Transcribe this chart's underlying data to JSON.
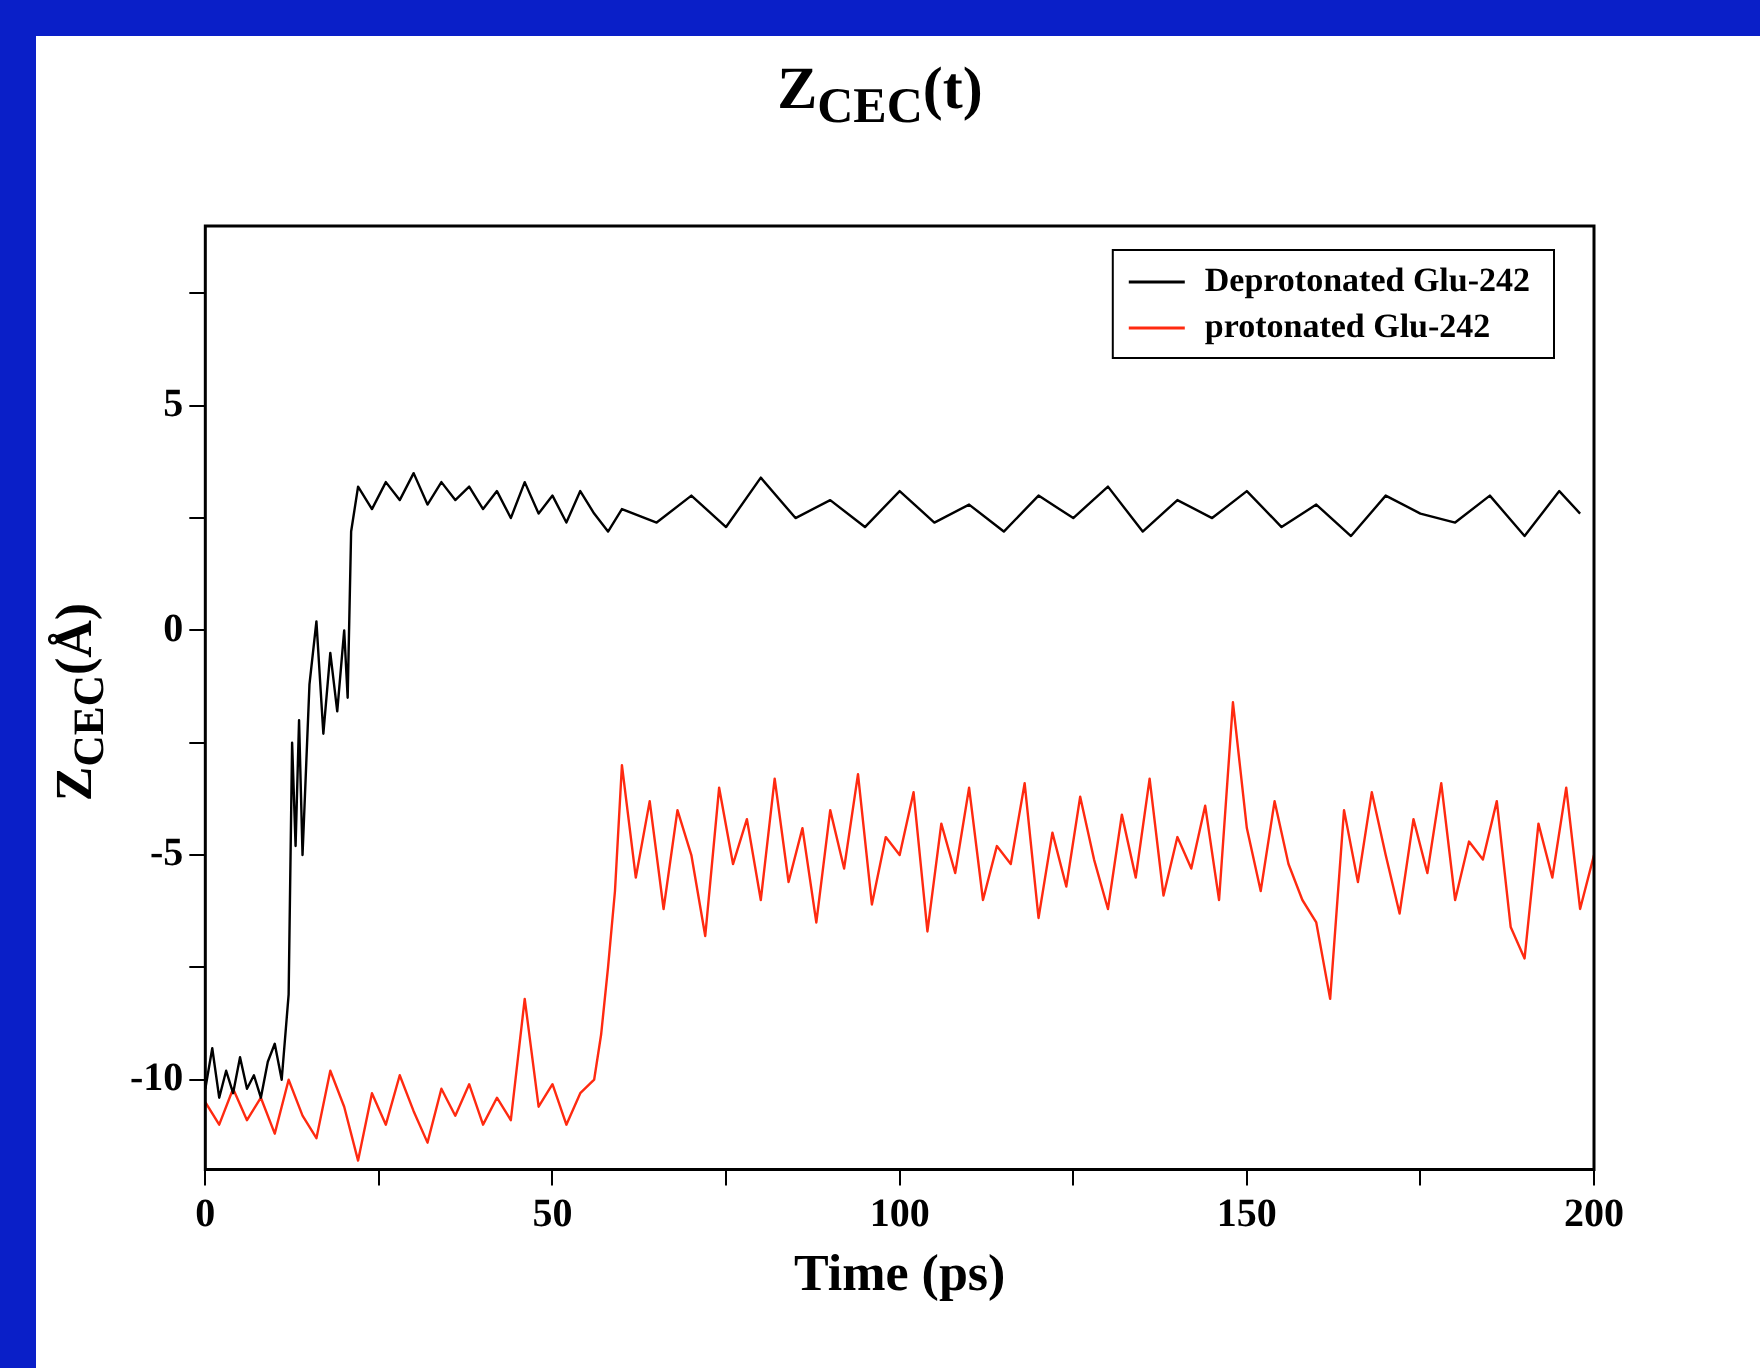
{
  "chart_data": {
    "type": "line",
    "title": "Z$_{CEC}$(t)",
    "xlabel": "Time (ps)",
    "ylabel": "Z$_{CEC}$(Å)",
    "legend": "top right",
    "marker": "none",
    "line_style": "solid",
    "xlim": [
      0,
      200
    ],
    "xticks": [
      0,
      {
        "value": 25,
        "label": null
      },
      50,
      {
        "value": 75,
        "label": null
      },
      100,
      {
        "value": 125,
        "label": null
      },
      150,
      {
        "value": 175,
        "label": null
      },
      200
    ],
    "ylim": [
      -12,
      9
    ],
    "yticks": [
      -10,
      {
        "value": -7.5,
        "label": null
      },
      -5,
      {
        "value": -2.5,
        "label": null
      },
      0,
      {
        "value": 2.5,
        "label": null
      },
      5,
      {
        "value": 7.5,
        "label": null
      }
    ],
    "series": [
      {
        "name": "Deprotonated Glu-242",
        "color": "#000000",
        "x": [
          0,
          1,
          2,
          3,
          4,
          5,
          6,
          7,
          8,
          9,
          10,
          11,
          12,
          12.5,
          13,
          13.5,
          14,
          15,
          16,
          17,
          18,
          19,
          20,
          20.5,
          21,
          22,
          24,
          26,
          28,
          30,
          32,
          34,
          36,
          38,
          40,
          42,
          44,
          46,
          48,
          50,
          52,
          54,
          56,
          58,
          60,
          65,
          70,
          75,
          80,
          85,
          90,
          95,
          100,
          105,
          110,
          115,
          120,
          125,
          130,
          135,
          140,
          145,
          150,
          155,
          160,
          165,
          170,
          175,
          180,
          185,
          190,
          195,
          198
        ],
        "values": [
          -10.2,
          -9.3,
          -10.4,
          -9.8,
          -10.3,
          -9.5,
          -10.2,
          -9.9,
          -10.4,
          -9.6,
          -9.2,
          -10.0,
          -8.1,
          -2.5,
          -4.8,
          -2.0,
          -5.0,
          -1.2,
          0.2,
          -2.3,
          -0.5,
          -1.8,
          0.0,
          -1.5,
          2.2,
          3.2,
          2.7,
          3.3,
          2.9,
          3.5,
          2.8,
          3.3,
          2.9,
          3.2,
          2.7,
          3.1,
          2.5,
          3.3,
          2.6,
          3.0,
          2.4,
          3.1,
          2.6,
          2.2,
          2.7,
          2.4,
          3.0,
          2.3,
          3.4,
          2.5,
          2.9,
          2.3,
          3.1,
          2.4,
          2.8,
          2.2,
          3.0,
          2.5,
          3.2,
          2.2,
          2.9,
          2.5,
          3.1,
          2.3,
          2.8,
          2.1,
          3.0,
          2.6,
          2.4,
          3.0,
          2.1,
          3.1,
          2.6
        ]
      },
      {
        "name": "protonated Glu-242",
        "color": "#ff2a10",
        "x": [
          0,
          2,
          4,
          6,
          8,
          10,
          12,
          14,
          16,
          18,
          20,
          22,
          24,
          26,
          28,
          30,
          32,
          34,
          36,
          38,
          40,
          42,
          44,
          46,
          48,
          50,
          52,
          54,
          56,
          57,
          58,
          59,
          60,
          62,
          64,
          66,
          68,
          70,
          72,
          74,
          76,
          78,
          80,
          82,
          84,
          86,
          88,
          90,
          92,
          94,
          96,
          98,
          100,
          102,
          104,
          106,
          108,
          110,
          112,
          114,
          116,
          118,
          120,
          122,
          124,
          126,
          128,
          130,
          132,
          134,
          136,
          138,
          140,
          142,
          144,
          146,
          148,
          150,
          152,
          154,
          156,
          158,
          160,
          162,
          164,
          166,
          168,
          170,
          172,
          174,
          176,
          178,
          180,
          182,
          184,
          186,
          188,
          190,
          192,
          194,
          196,
          198,
          200
        ],
        "values": [
          -10.5,
          -11.0,
          -10.2,
          -10.9,
          -10.4,
          -11.2,
          -10.0,
          -10.8,
          -11.3,
          -9.8,
          -10.6,
          -11.8,
          -10.3,
          -11.0,
          -9.9,
          -10.7,
          -11.4,
          -10.2,
          -10.8,
          -10.1,
          -11.0,
          -10.4,
          -10.9,
          -8.2,
          -10.6,
          -10.1,
          -11.0,
          -10.3,
          -10.0,
          -9.0,
          -7.5,
          -5.8,
          -3.0,
          -5.5,
          -3.8,
          -6.2,
          -4.0,
          -5.0,
          -6.8,
          -3.5,
          -5.2,
          -4.2,
          -6.0,
          -3.3,
          -5.6,
          -4.4,
          -6.5,
          -4.0,
          -5.3,
          -3.2,
          -6.1,
          -4.6,
          -5.0,
          -3.6,
          -6.7,
          -4.3,
          -5.4,
          -3.5,
          -6.0,
          -4.8,
          -5.2,
          -3.4,
          -6.4,
          -4.5,
          -5.7,
          -3.7,
          -5.1,
          -6.2,
          -4.1,
          -5.5,
          -3.3,
          -5.9,
          -4.6,
          -5.3,
          -3.9,
          -6.0,
          -1.6,
          -4.4,
          -5.8,
          -3.8,
          -5.2,
          -6.0,
          -6.5,
          -8.2,
          -4.0,
          -5.6,
          -3.6,
          -5.0,
          -6.3,
          -4.2,
          -5.4,
          -3.4,
          -6.0,
          -4.7,
          -5.1,
          -3.8,
          -6.6,
          -7.3,
          -4.3,
          -5.5,
          -3.5,
          -6.2,
          -5.0
        ]
      }
    ]
  }
}
